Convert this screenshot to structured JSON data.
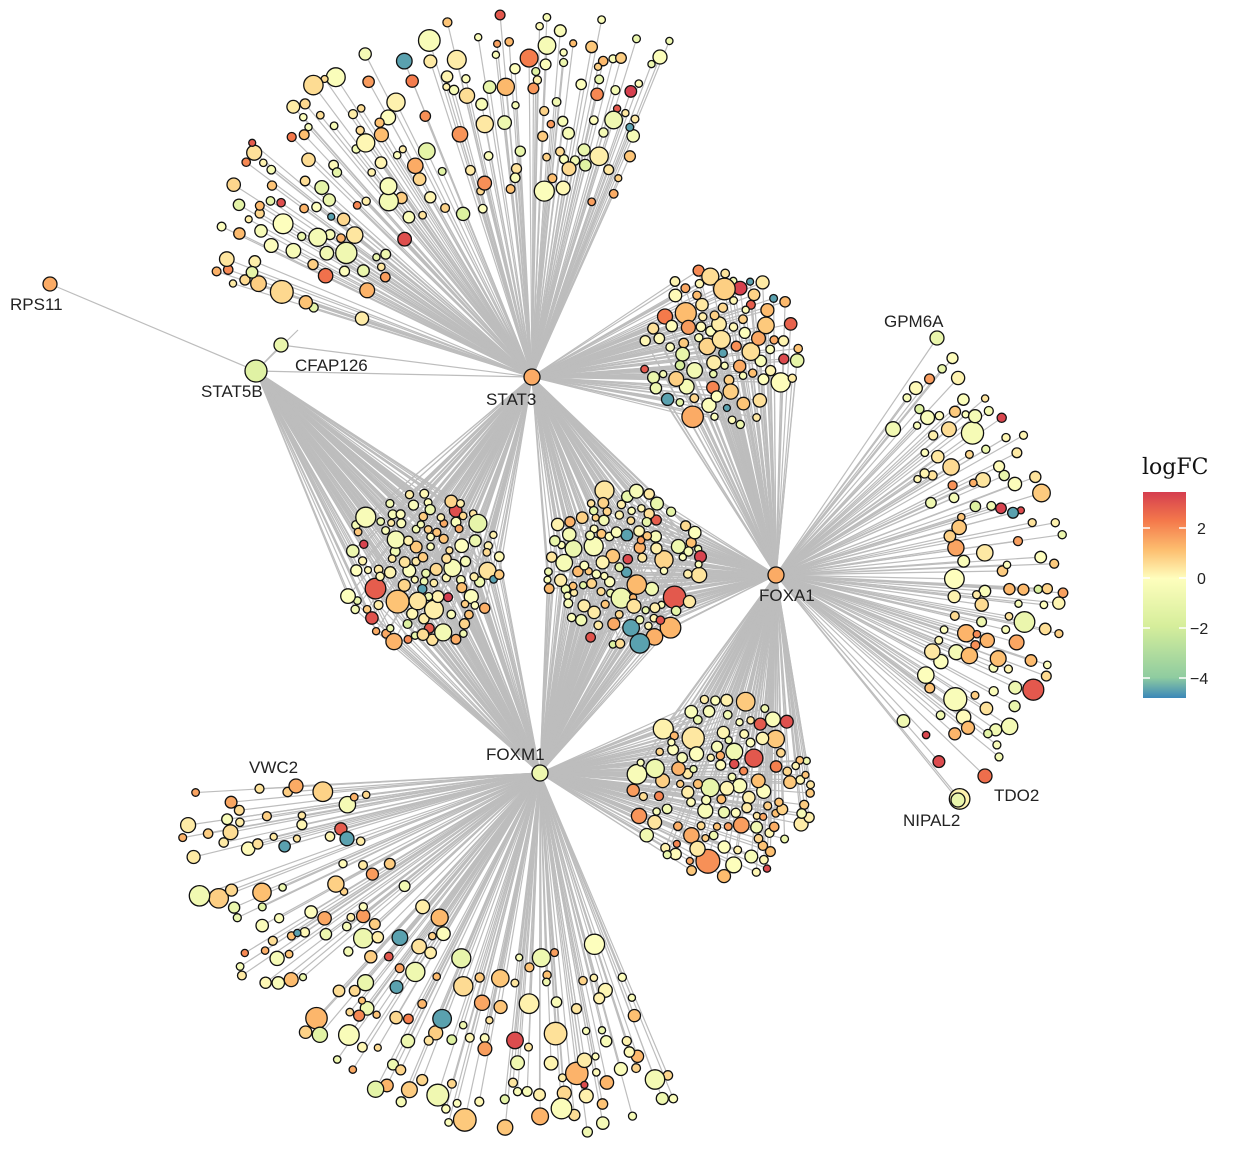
{
  "chart_data": {
    "type": "network",
    "hubs": [
      {
        "id": "STAT3",
        "label": "STAT3",
        "logFC": 1.5
      },
      {
        "id": "FOXA1",
        "label": "FOXA1",
        "logFC": 1.5
      },
      {
        "id": "FOXM1",
        "label": "FOXM1",
        "logFC": -0.8
      },
      {
        "id": "STAT5B",
        "label": "STAT5B",
        "logFC": -1.5
      }
    ],
    "labeled_genes": [
      {
        "id": "RPS11",
        "label": "RPS11",
        "logFC": 1.5,
        "targets": [
          "STAT5B"
        ]
      },
      {
        "id": "CFAP126",
        "label": "CFAP126",
        "logFC": -1.0,
        "targets": [
          "STAT3",
          "STAT5B"
        ]
      },
      {
        "id": "GPM6A",
        "label": "GPM6A",
        "logFC": -1.0,
        "targets": [
          "FOXA1"
        ]
      },
      {
        "id": "NIPAL2",
        "label": "NIPAL2",
        "logFC": -1.0,
        "targets": [
          "FOXA1"
        ]
      },
      {
        "id": "TDO2",
        "label": "TDO2",
        "logFC": 2.5,
        "targets": [
          "FOXA1"
        ]
      },
      {
        "id": "VWC2",
        "label": "VWC2",
        "logFC": 1.5,
        "targets": [
          "FOXM1"
        ]
      }
    ],
    "hub_edges": [
      [
        "STAT5B",
        "STAT3"
      ]
    ],
    "gene_groups": [
      {
        "targets": [
          "STAT3"
        ],
        "approx_gene_count": 190
      },
      {
        "targets": [
          "FOXM1"
        ],
        "approx_gene_count": 190
      },
      {
        "targets": [
          "FOXA1"
        ],
        "approx_gene_count": 120
      },
      {
        "targets": [
          "STAT3",
          "FOXM1",
          "STAT5B"
        ],
        "approx_gene_count": 110
      },
      {
        "targets": [
          "STAT3",
          "FOXM1",
          "FOXA1"
        ],
        "approx_gene_count": 110
      },
      {
        "targets": [
          "STAT3",
          "FOXA1"
        ],
        "approx_gene_count": 90
      },
      {
        "targets": [
          "FOXM1",
          "FOXA1"
        ],
        "approx_gene_count": 120
      }
    ],
    "legend": {
      "title": "logFC",
      "ticks": [
        "2",
        "0",
        "−2",
        "−4"
      ],
      "tick_values": [
        2,
        0,
        -2,
        -4
      ],
      "range": [
        -4.8,
        3.4
      ],
      "colors": [
        "#3b87b8",
        "#8fcca0",
        "#d6ee9b",
        "#fefebd",
        "#fdbe6f",
        "#f4794b",
        "#d53e4f"
      ],
      "placement": "right"
    },
    "edge_color": "#bdbdbd"
  }
}
